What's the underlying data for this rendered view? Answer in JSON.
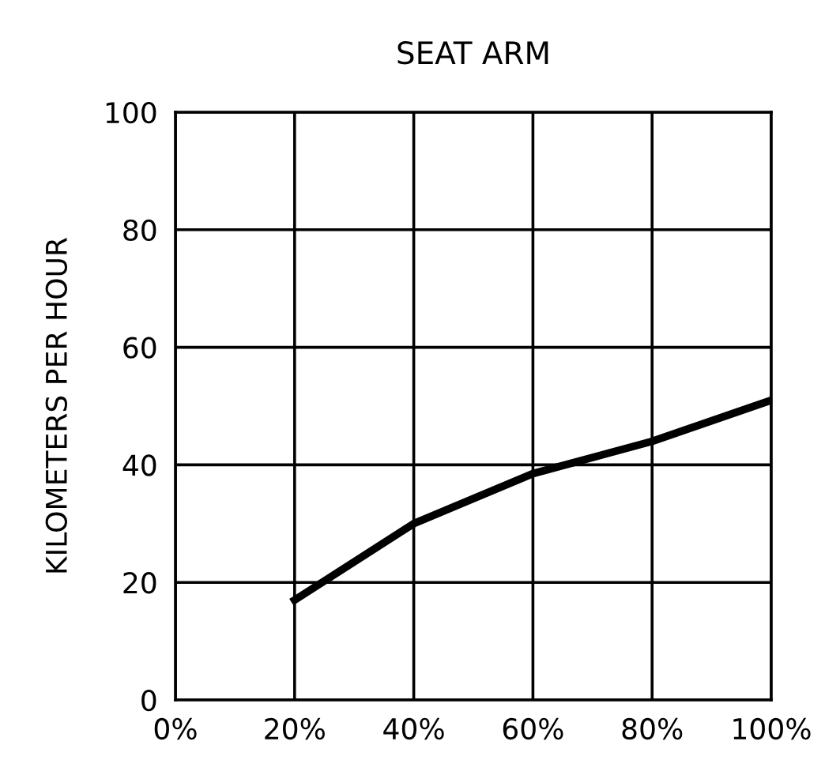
{
  "chart_data": {
    "type": "line",
    "title": "SEAT ARM",
    "ylabel": "KILOMETERS PER HOUR",
    "x": [
      20,
      40,
      60,
      80,
      100
    ],
    "series": [
      {
        "color": "#000000",
        "values": [
          17,
          30,
          38.5,
          44,
          51
        ]
      }
    ],
    "xlim": [
      0,
      100
    ],
    "xticks": [
      {
        "value": 0,
        "label": "0%"
      },
      {
        "value": 20,
        "label": "20%"
      },
      {
        "value": 40,
        "label": "40%"
      },
      {
        "value": 60,
        "label": "60%"
      },
      {
        "value": 80,
        "label": "80%"
      },
      {
        "value": 100,
        "label": "100%"
      }
    ],
    "ylim": [
      0,
      100
    ],
    "yticks": [
      0,
      20,
      40,
      60,
      80,
      100
    ],
    "grid": true,
    "marker": "none",
    "line_style": "solid"
  }
}
